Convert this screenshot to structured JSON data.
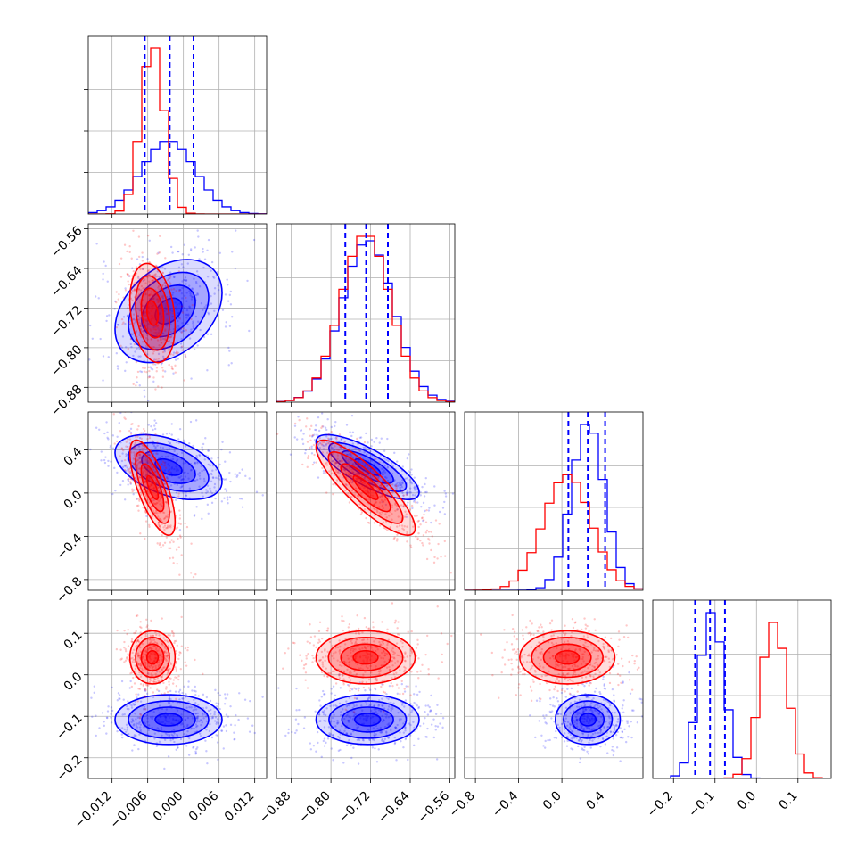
{
  "chart_data": {
    "type": "corner",
    "colors": {
      "blue": "#0000ff",
      "red": "#ff0000",
      "grid": "#b0b0b0",
      "axis": "#000000"
    },
    "grid": true,
    "parameters": [
      {
        "range": [
          -0.016,
          0.014
        ],
        "ticks": [
          -0.012,
          -0.006,
          0.0,
          0.006,
          0.012
        ],
        "tick_labels": [
          "−0.012",
          "−0.006",
          "0.000",
          "0.006",
          "0.012"
        ]
      },
      {
        "range": [
          -0.91,
          -0.55
        ],
        "ticks": [
          -0.88,
          -0.8,
          -0.72,
          -0.64,
          -0.56
        ],
        "tick_labels": [
          "−0.88",
          "−0.80",
          "−0.72",
          "−0.64",
          "−0.56"
        ]
      },
      {
        "range": [
          -0.9,
          0.75
        ],
        "ticks": [
          -0.8,
          -0.4,
          0.0,
          0.4
        ],
        "tick_labels": [
          "−0.8",
          "−0.4",
          "0.0",
          "0.4"
        ]
      },
      {
        "range": [
          -0.25,
          0.18
        ],
        "ticks": [
          -0.2,
          -0.1,
          0.0,
          0.1
        ],
        "tick_labels": [
          "−0.2",
          "−0.1",
          "0.0",
          "0.1"
        ]
      }
    ],
    "series": [
      {
        "color": "blue",
        "mean": [
          -0.0025,
          -0.726,
          0.24,
          -0.108
        ],
        "sd": [
          0.0045,
          0.052,
          0.15,
          0.03
        ],
        "corr": [
          [
            1,
            0.35,
            -0.45,
            0
          ],
          [
            0.35,
            1,
            -0.78,
            0
          ],
          [
            -0.45,
            -0.78,
            1,
            0
          ],
          [
            0,
            0,
            0,
            1
          ]
        ],
        "quantiles": [
          [
            -0.0065,
            -0.0023,
            0.0017
          ],
          [
            -0.771,
            -0.729,
            -0.685
          ],
          [
            0.06,
            0.24,
            0.4
          ],
          [
            -0.148,
            -0.112,
            -0.076
          ]
        ]
      },
      {
        "color": "red",
        "mean": [
          -0.0052,
          -0.73,
          0.05,
          0.042
        ],
        "sd": [
          0.0019,
          0.05,
          0.22,
          0.032
        ],
        "corr": [
          [
            1,
            -0.25,
            -0.72,
            0
          ],
          [
            -0.25,
            1,
            -0.85,
            0
          ],
          [
            -0.72,
            -0.85,
            1,
            0
          ],
          [
            0,
            0,
            0,
            1
          ]
        ]
      }
    ]
  }
}
